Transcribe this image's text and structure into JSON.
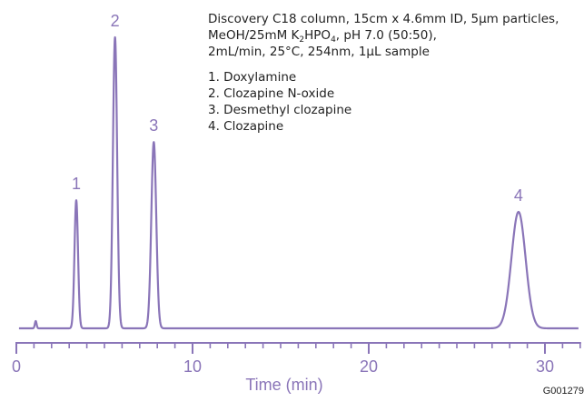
{
  "chart_data": {
    "type": "line",
    "title": "",
    "xlabel": "Time (min)",
    "ylabel": "",
    "xlim": [
      0,
      32
    ],
    "x_ticks": [
      0,
      10,
      20,
      30
    ],
    "x_tick_labels": [
      "0",
      "10",
      "20",
      "30"
    ],
    "minor_tick_step": 1,
    "grid": false,
    "line_color": "#8a75b8",
    "conditions": {
      "line1": "Discovery C18 column, 15cm x 4.6mm ID, 5µm particles,",
      "line2_prefix": "MeOH/25mM K",
      "line2_sub1": "2",
      "line2_mid": "HPO",
      "line2_sub2": "4",
      "line2_suffix": ", pH 7.0 (50:50),",
      "line3": "2mL/min, 25°C, 254nm, 1µL sample"
    },
    "peak_list": [
      "1. Doxylamine",
      "2. Clozapine N-oxide",
      "3. Desmethyl clozapine",
      "4. Clozapine"
    ],
    "peaks": [
      {
        "label": "1",
        "time": 3.4,
        "height": 0.44,
        "width": 0.1
      },
      {
        "label": "2",
        "time": 5.6,
        "height": 1.0,
        "width": 0.12
      },
      {
        "label": "3",
        "time": 7.8,
        "height": 0.64,
        "width": 0.14
      },
      {
        "label": "4",
        "time": 28.5,
        "height": 0.4,
        "width": 0.4
      }
    ],
    "figure_code": "G001279"
  }
}
